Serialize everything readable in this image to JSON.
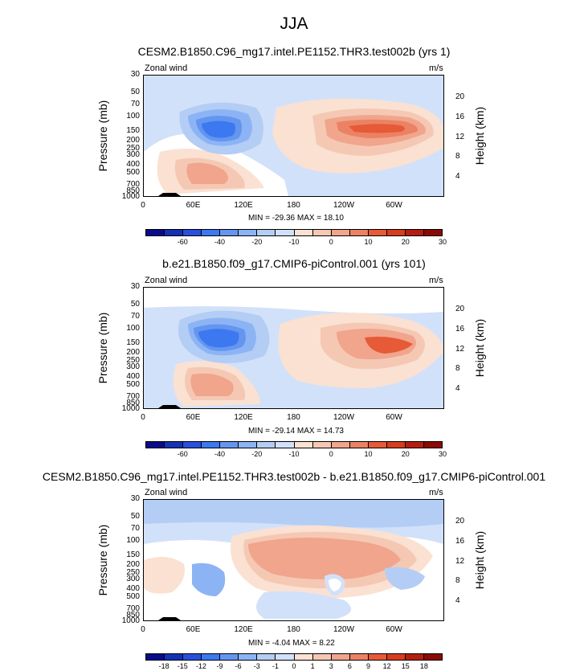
{
  "title": "JJA",
  "colors": {
    "abs": [
      "#0a0a8c",
      "#1432b4",
      "#2850dc",
      "#3c78f0",
      "#6496f0",
      "#8cb4f5",
      "#b4cdf5",
      "#d2e1fa",
      "#fae1d2",
      "#f5c8b4",
      "#f0a58c",
      "#eb8264",
      "#e65a37",
      "#d73c1e",
      "#b41e0f",
      "#8c0a05"
    ],
    "diff": [
      "#0a0a8c",
      "#1432b4",
      "#2850dc",
      "#3c78f0",
      "#6496f0",
      "#8cb4f5",
      "#b4cdf5",
      "#d2e1fa",
      "#fae1d2",
      "#f5c8b4",
      "#f0a58c",
      "#eb8264",
      "#e65a37",
      "#d73c1e",
      "#b41e0f",
      "#8c0a05"
    ]
  },
  "axes": {
    "left_label": "Pressure (mb)",
    "right_label": "Height (km)",
    "pressure_ticks": [
      "30",
      "50",
      "70",
      "100",
      "150",
      "200",
      "250",
      "300",
      "400",
      "500",
      "700",
      "850",
      "1000"
    ],
    "height_ticks": [
      "20",
      "16",
      "12",
      "8",
      "4"
    ],
    "x_ticks": [
      "0",
      "60E",
      "120E",
      "180",
      "120W",
      "60W"
    ]
  },
  "panels": [
    {
      "title": "CESM2.B1850.C96_mg17.intel.PE1152.THR3.test002b (yrs 1)",
      "left_note": "Zonal wind",
      "right_note": "m/s",
      "minmax": "MIN = -29.36  MAX = 18.10",
      "cbar_labels": [
        "-60",
        "-40",
        "-20",
        "-10",
        "0",
        "10",
        "20",
        "30"
      ]
    },
    {
      "title": "b.e21.B1850.f09_g17.CMIP6-piControl.001 (yrs 101)",
      "left_note": "Zonal wind",
      "right_note": "m/s",
      "minmax": "MIN = -29.14  MAX = 14.73",
      "cbar_labels": [
        "-60",
        "-40",
        "-20",
        "-10",
        "0",
        "10",
        "20",
        "30"
      ]
    },
    {
      "title": "CESM2.B1850.C96_mg17.intel.PE1152.THR3.test002b - b.e21.B1850.f09_g17.CMIP6-piControl.001",
      "left_note": "Zonal wind",
      "right_note": "m/s",
      "minmax": "MIN = -4.04  MAX =  8.22",
      "cbar_labels": [
        "-18",
        "-15",
        "-12",
        "-9",
        "-6",
        "-3",
        "-1",
        "0",
        "1",
        "3",
        "6",
        "9",
        "12",
        "15",
        "18"
      ]
    }
  ],
  "chart_data": [
    {
      "type": "heatmap",
      "title": "CESM2.B1850.C96_mg17.intel.PE1152.THR3.test002b (yrs 1)",
      "variable": "Zonal wind",
      "units": "m/s",
      "x": "longitude 0 to 360 (0, 60E, 120E, 180, 120W, 60W)",
      "y": "pressure 1000 to 30 mb",
      "min": -29.36,
      "max": 18.1,
      "levels": [
        -60,
        -40,
        -20,
        -10,
        0,
        10,
        20,
        30
      ]
    },
    {
      "type": "heatmap",
      "title": "b.e21.B1850.f09_g17.CMIP6-piControl.001 (yrs 101)",
      "variable": "Zonal wind",
      "units": "m/s",
      "x": "longitude 0 to 360",
      "y": "pressure 1000 to 30 mb",
      "min": -29.14,
      "max": 14.73,
      "levels": [
        -60,
        -40,
        -20,
        -10,
        0,
        10,
        20,
        30
      ]
    },
    {
      "type": "heatmap",
      "title": "CESM2.B1850.C96_mg17.intel.PE1152.THR3.test002b - b.e21.B1850.f09_g17.CMIP6-piControl.001",
      "variable": "Zonal wind",
      "units": "m/s",
      "x": "longitude 0 to 360",
      "y": "pressure 1000 to 30 mb",
      "min": -4.04,
      "max": 8.22,
      "levels": [
        -18,
        -15,
        -12,
        -9,
        -6,
        -3,
        -1,
        0,
        1,
        3,
        6,
        9,
        12,
        15,
        18
      ]
    }
  ]
}
